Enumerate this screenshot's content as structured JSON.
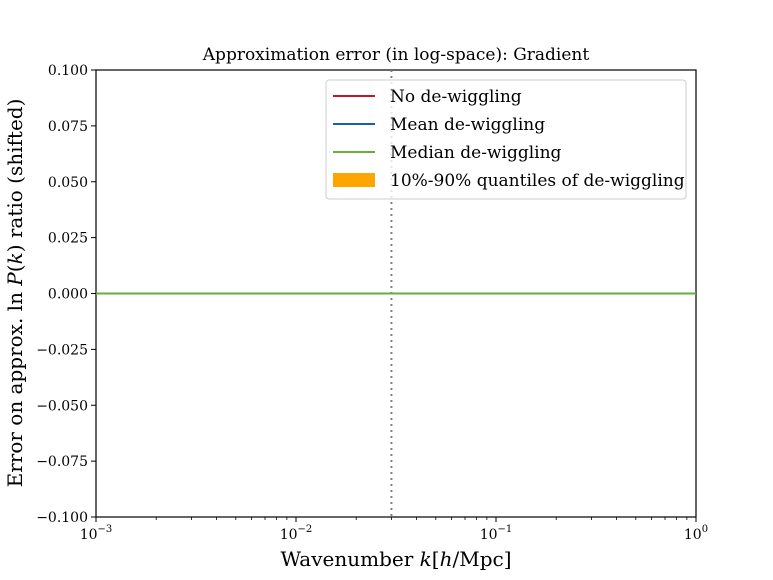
{
  "chart_data": {
    "type": "line",
    "title": "Approximation error (in log-space): Gradient",
    "xlabel": "Wavenumber k[h/Mpc]",
    "ylabel": "Error on approx. ln P(k) ratio (shifted)",
    "xscale": "log",
    "xlim": [
      0.001,
      1
    ],
    "ylim": [
      -0.1,
      0.1
    ],
    "x_ticks": [
      {
        "value": 0.001,
        "base": "10",
        "exp": "−3"
      },
      {
        "value": 0.01,
        "base": "10",
        "exp": "−2"
      },
      {
        "value": 0.1,
        "base": "10",
        "exp": "−1"
      },
      {
        "value": 1,
        "base": "10",
        "exp": "0"
      }
    ],
    "y_ticks": [
      {
        "value": 0.1,
        "label": "0.100"
      },
      {
        "value": 0.075,
        "label": "0.075"
      },
      {
        "value": 0.05,
        "label": "0.050"
      },
      {
        "value": 0.025,
        "label": "0.025"
      },
      {
        "value": 0,
        "label": "0.000"
      },
      {
        "value": -0.025,
        "label": "−0.025"
      },
      {
        "value": -0.05,
        "label": "−0.050"
      },
      {
        "value": -0.075,
        "label": "−0.075"
      },
      {
        "value": -0.1,
        "label": "−0.100"
      }
    ],
    "vline": {
      "x": 0.03,
      "style": "dotted",
      "color": "#808080"
    },
    "series": [
      {
        "name": "No de-wiggling",
        "color": "#c0182a",
        "kind": "line",
        "x": [
          0.001,
          1
        ],
        "y": [
          0,
          0
        ]
      },
      {
        "name": "Mean de-wiggling",
        "color": "#1a5da8",
        "kind": "line",
        "x": [
          0.001,
          1
        ],
        "y": [
          0,
          0
        ]
      },
      {
        "name": "Median de-wiggling",
        "color": "#6aab3c",
        "kind": "line",
        "x": [
          0.001,
          1
        ],
        "y": [
          0,
          0
        ]
      },
      {
        "name": "10%-90% quantiles of de-wiggling",
        "color": "#ffa500",
        "kind": "band",
        "x": [
          0.001,
          1
        ],
        "y_low": [
          0,
          0
        ],
        "y_high": [
          0,
          0
        ]
      }
    ],
    "legend_position": "top-right"
  }
}
